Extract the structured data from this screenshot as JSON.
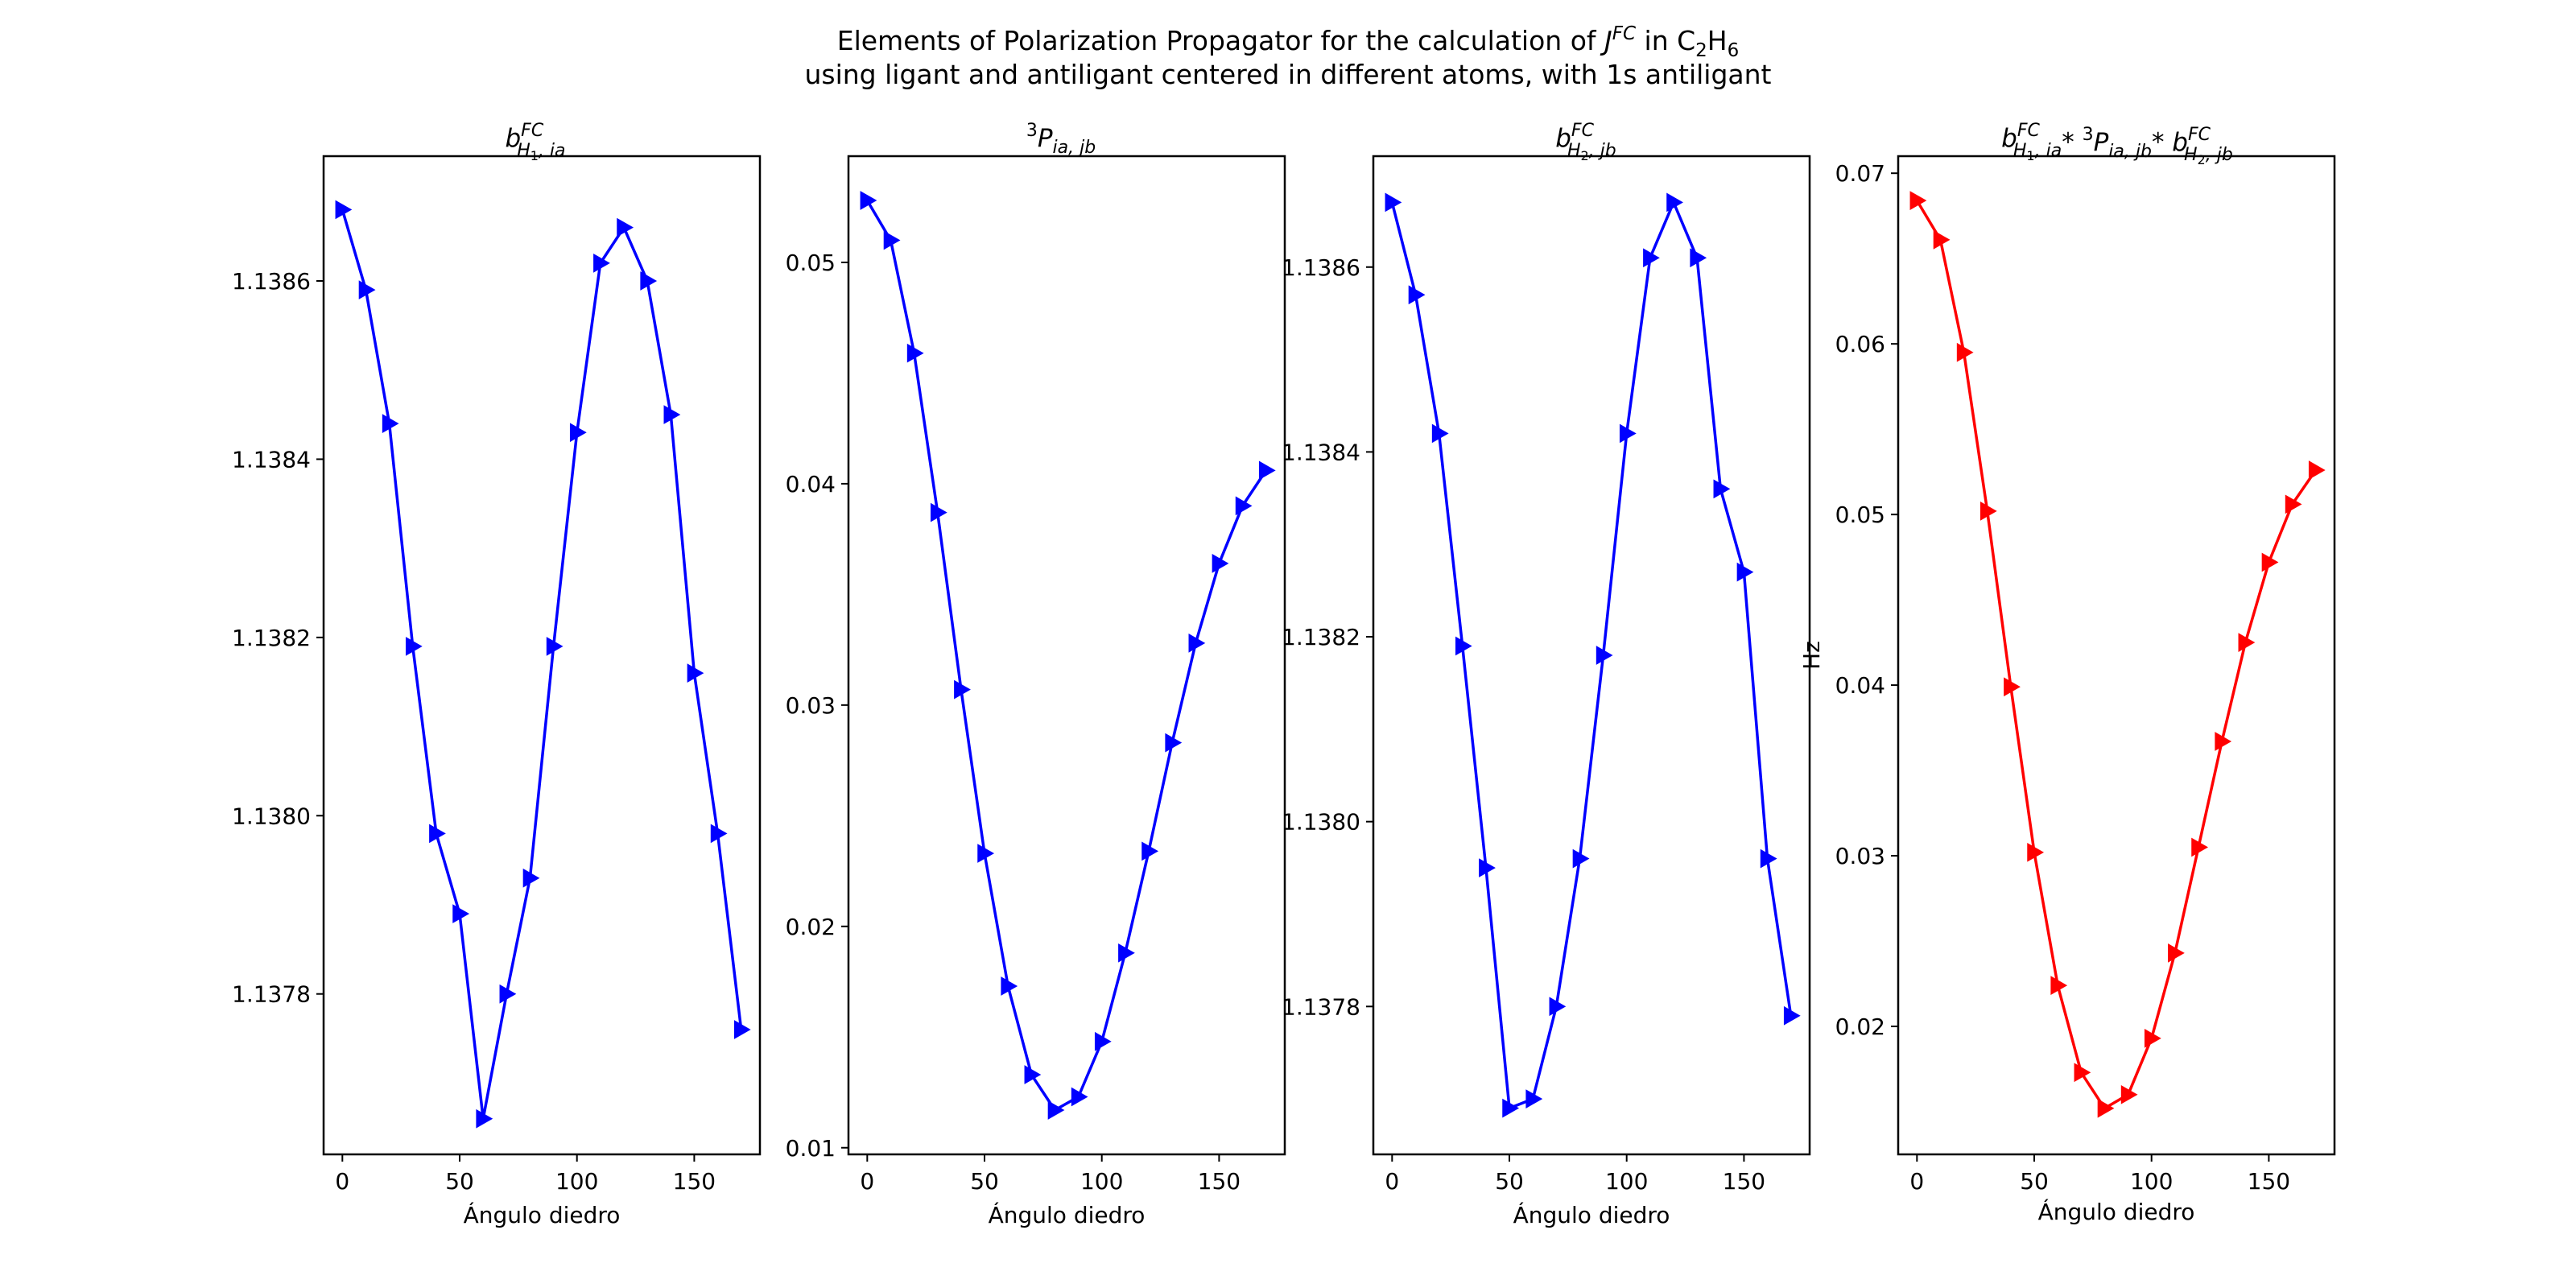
{
  "suptitle": {
    "line1": {
      "prefix": "Elements of Polarization Propagator for the calculation of ",
      "J": "J",
      "J_sup": "FC",
      "mid": " in C",
      "sub_a": "2",
      "H": "H",
      "sub_b": "6"
    },
    "line2": "using ligant and antiligant centered in different atoms, with 1s antiligant"
  },
  "colors": {
    "series1": "#0000ff",
    "series2": "#0000ff",
    "series3": "#0000ff",
    "series4": "#ff0000"
  },
  "chart_data": [
    {
      "type": "line",
      "marker": "triangle-right",
      "title": {
        "b": "b",
        "sup": "FC",
        "sub1": "H",
        "sub2": "1",
        "sub3": ", ia"
      },
      "xlabel": "Ángulo diedro",
      "ylabel": "",
      "xlim": [
        -8,
        178
      ],
      "ylim": [
        1.13762,
        1.13874
      ],
      "xticks": [
        0,
        50,
        100,
        150
      ],
      "yticks": [
        1.1378,
        1.138,
        1.1382,
        1.1384,
        1.1386
      ],
      "ytick_labels": [
        "1.1378",
        "1.1380",
        "1.1382",
        "1.1384",
        "1.1386"
      ],
      "x": [
        0,
        10,
        20,
        30,
        40,
        50,
        60,
        70,
        80,
        90,
        100,
        110,
        120,
        130,
        140,
        150,
        160,
        170
      ],
      "y": [
        1.13868,
        1.13859,
        1.13844,
        1.13819,
        1.13798,
        1.13789,
        1.13766,
        1.1378,
        1.13793,
        1.13819,
        1.13843,
        1.13862,
        1.13866,
        1.1386,
        1.13845,
        1.13816,
        1.13798,
        1.13776
      ]
    },
    {
      "type": "line",
      "marker": "triangle-right",
      "title": {
        "pre": "3",
        "P": "P",
        "sub": "ia, jb"
      },
      "xlabel": "Ángulo diedro",
      "ylabel": "",
      "xlim": [
        -8,
        178
      ],
      "ylim": [
        0.0097,
        0.0548
      ],
      "xticks": [
        0,
        50,
        100,
        150
      ],
      "yticks": [
        0.01,
        0.02,
        0.03,
        0.04,
        0.05
      ],
      "ytick_labels": [
        "0.01",
        "0.02",
        "0.03",
        "0.04",
        "0.05"
      ],
      "x": [
        0,
        10,
        20,
        30,
        40,
        50,
        60,
        70,
        80,
        90,
        100,
        110,
        120,
        130,
        140,
        150,
        160,
        170
      ],
      "y": [
        0.0528,
        0.051,
        0.0459,
        0.0387,
        0.0307,
        0.0233,
        0.0173,
        0.0133,
        0.0117,
        0.0123,
        0.0148,
        0.0188,
        0.0234,
        0.0283,
        0.0328,
        0.0364,
        0.039,
        0.0406
      ]
    },
    {
      "type": "line",
      "marker": "triangle-right",
      "title": {
        "b": "b",
        "sup": "FC",
        "sub1": "H",
        "sub2": "2",
        "sub3": ", jb"
      },
      "xlabel": "Ángulo diedro",
      "ylabel": "",
      "xlim": [
        -8,
        178
      ],
      "ylim": [
        1.13764,
        1.13872
      ],
      "xticks": [
        0,
        50,
        100,
        150
      ],
      "yticks": [
        1.1378,
        1.138,
        1.1382,
        1.1384,
        1.1386
      ],
      "ytick_labels": [
        "1.1378",
        "1.1380",
        "1.1382",
        "1.1384",
        "1.1386"
      ],
      "x": [
        0,
        10,
        20,
        30,
        40,
        50,
        60,
        70,
        80,
        90,
        100,
        110,
        120,
        130,
        140,
        150,
        160,
        170
      ],
      "y": [
        1.13867,
        1.13857,
        1.13842,
        1.13819,
        1.13795,
        1.13769,
        1.1377,
        1.1378,
        1.13796,
        1.13818,
        1.13842,
        1.13861,
        1.13867,
        1.13861,
        1.13836,
        1.13827,
        1.13796,
        1.13779
      ]
    },
    {
      "type": "line",
      "marker": "triangle-right",
      "title": {
        "b": "b",
        "sup": "FC",
        "sub1": "H",
        "sub2": "1",
        "sub3": ", ia",
        "star": "* ",
        "pre": "3",
        "P": "P",
        "psub": "ia, jb",
        "star2": "* ",
        "b2": "b",
        "sup2": "FC",
        "s21": "H",
        "s22": "2",
        "s23": ", jb"
      },
      "xlabel": "Ángulo diedro",
      "ylabel": "Hz",
      "xlim": [
        -8,
        178
      ],
      "ylim": [
        0.0125,
        0.071
      ],
      "xticks": [
        0,
        50,
        100,
        150
      ],
      "yticks": [
        0.02,
        0.03,
        0.04,
        0.05,
        0.06,
        0.07
      ],
      "ytick_labels": [
        "0.02",
        "0.03",
        "0.04",
        "0.05",
        "0.06",
        "0.07"
      ],
      "x": [
        0,
        10,
        20,
        30,
        40,
        50,
        60,
        70,
        80,
        90,
        100,
        110,
        120,
        130,
        140,
        150,
        160,
        170
      ],
      "y": [
        0.0684,
        0.0661,
        0.0595,
        0.0502,
        0.0399,
        0.0302,
        0.0224,
        0.0173,
        0.0152,
        0.016,
        0.0193,
        0.0243,
        0.0305,
        0.0367,
        0.0425,
        0.0472,
        0.0506,
        0.0526
      ]
    }
  ]
}
